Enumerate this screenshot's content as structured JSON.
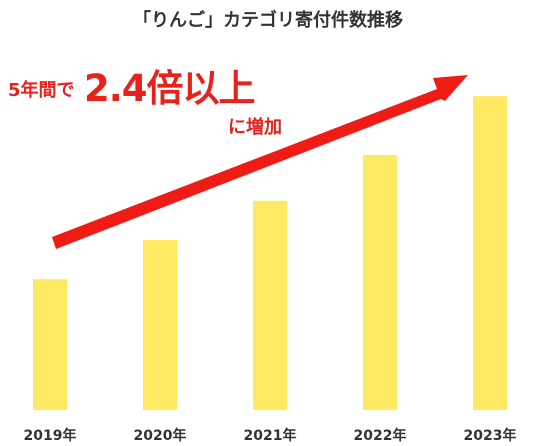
{
  "chart_data": {
    "type": "bar",
    "title": "「りんご」カテゴリ寄付件数推移",
    "categories": [
      "2019年",
      "2020年",
      "2021年",
      "2022年",
      "2023年"
    ],
    "values": [
      1.0,
      1.3,
      1.6,
      1.95,
      2.4
    ],
    "ylim": [
      0,
      2.6
    ],
    "bar_color": "#ffe862",
    "grid": false,
    "annotation": {
      "prefix": "5年間で",
      "highlight": "2.4倍以上",
      "suffix": "に増加",
      "color": "#e8211a"
    }
  }
}
